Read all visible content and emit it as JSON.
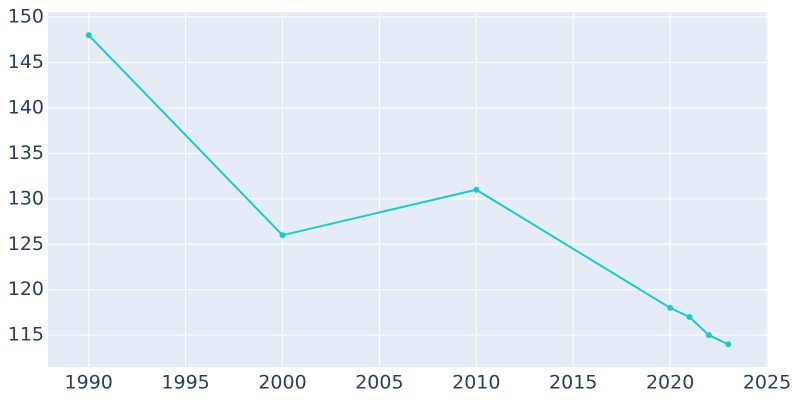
{
  "chart_data": {
    "type": "line",
    "x": [
      1990,
      2000,
      2010,
      2020,
      2021,
      2022,
      2023
    ],
    "series": [
      {
        "color": "#19cccc",
        "values": [
          148,
          126,
          131,
          118,
          117,
          115,
          114
        ]
      }
    ],
    "xlim": [
      1987.9,
      2025.05
    ],
    "xticks": [
      1990,
      1995,
      2000,
      2005,
      2010,
      2015,
      2020,
      2025
    ],
    "ylim": [
      111.5,
      150.55
    ],
    "yticks": [
      115,
      120,
      125,
      130,
      135,
      140,
      145,
      150
    ],
    "grid": true
  }
}
